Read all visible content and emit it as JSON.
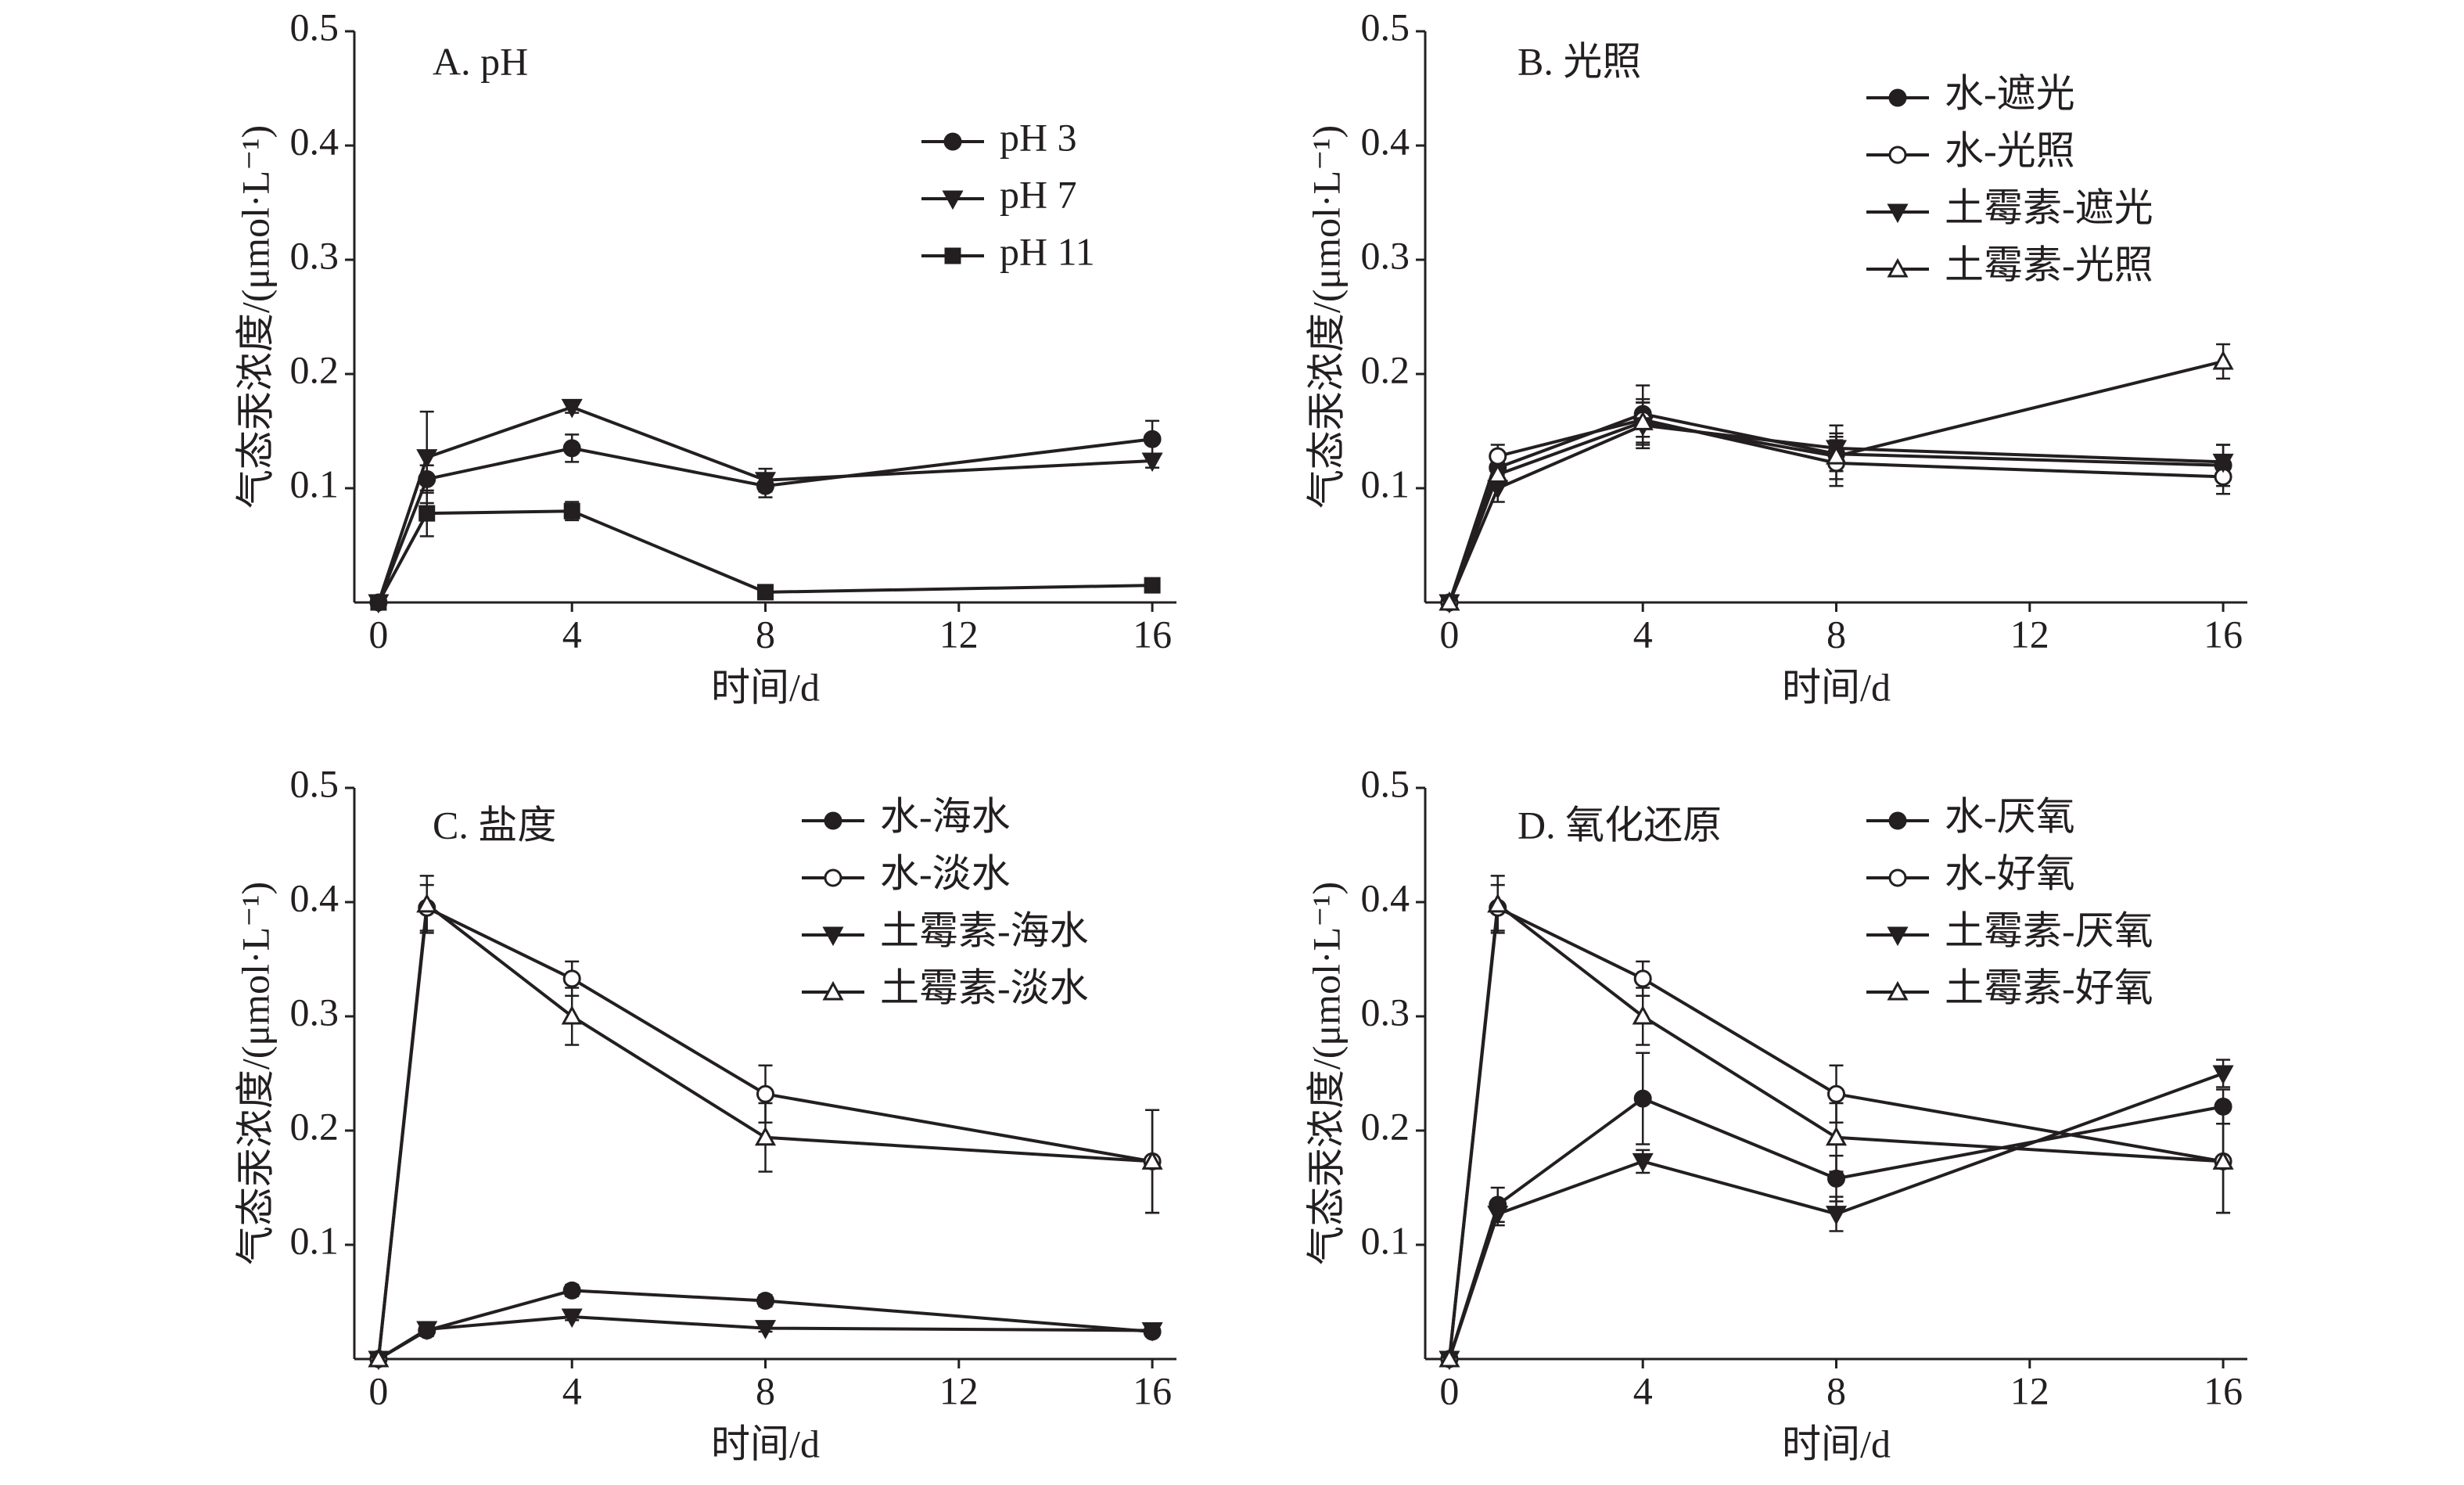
{
  "chart_data": [
    {
      "type": "line",
      "title": "A. pH",
      "x_label": "时间/d",
      "y_label": "气态汞浓度/(μmol·L⁻¹)",
      "x": [
        0,
        1,
        4,
        8,
        16
      ],
      "xlim": [
        -0.5,
        16.5
      ],
      "xticks": [
        0,
        4,
        8,
        12,
        16
      ],
      "ylim": [
        0,
        0.5
      ],
      "yticks": [
        0.1,
        0.2,
        0.3,
        0.4,
        0.5
      ],
      "series": [
        {
          "name": "pH 3",
          "color": "#231f20",
          "marker": "circle-filled",
          "values": [
            0,
            0.108,
            0.135,
            0.102,
            0.143
          ],
          "errors": [
            0,
            0.012,
            0.012,
            0.01,
            0.016
          ]
        },
        {
          "name": "pH 7",
          "color": "#231f20",
          "marker": "triangle-down-filled",
          "values": [
            0,
            0.127,
            0.171,
            0.107,
            0.124
          ],
          "errors": [
            0,
            0.04,
            0.005,
            0.01,
            0.006
          ]
        },
        {
          "name": "pH 11",
          "color": "#231f20",
          "marker": "square-filled",
          "values": [
            0,
            0.078,
            0.08,
            0.009,
            0.015
          ],
          "errors": [
            0,
            0.02,
            0.008,
            0.004,
            0.003
          ]
        }
      ]
    },
    {
      "type": "line",
      "title": "B. 光照",
      "x_label": "时间/d",
      "y_label": "气态汞浓度/(μmol·L⁻¹)",
      "x": [
        0,
        1,
        4,
        8,
        16
      ],
      "xlim": [
        -0.5,
        16.5
      ],
      "xticks": [
        0,
        4,
        8,
        12,
        16
      ],
      "ylim": [
        0,
        0.5
      ],
      "yticks": [
        0.1,
        0.2,
        0.3,
        0.4,
        0.5
      ],
      "series": [
        {
          "name": "水-遮光",
          "color": "#231f20",
          "marker": "circle-filled",
          "values": [
            0,
            0.118,
            0.165,
            0.13,
            0.12
          ],
          "errors": [
            0,
            0.01,
            0.025,
            0.015,
            0.018
          ]
        },
        {
          "name": "水-光照",
          "color": "#231f20",
          "marker": "circle-open",
          "values": [
            0,
            0.128,
            0.16,
            0.122,
            0.11
          ],
          "errors": [
            0,
            0.01,
            0.015,
            0.02,
            0.015
          ]
        },
        {
          "name": "土霉素-遮光",
          "color": "#231f20",
          "marker": "triangle-down-filled",
          "values": [
            0,
            0.1,
            0.155,
            0.135,
            0.123
          ],
          "errors": [
            0,
            0.012,
            0.02,
            0.02,
            0.015
          ]
        },
        {
          "name": "土霉素-光照",
          "color": "#231f20",
          "marker": "triangle-up-open",
          "values": [
            0,
            0.112,
            0.158,
            0.128,
            0.211
          ],
          "errors": [
            0,
            0.01,
            0.02,
            0.02,
            0.015
          ]
        }
      ]
    },
    {
      "type": "line",
      "title": "C. 盐度",
      "x_label": "时间/d",
      "y_label": "气态汞浓度/(μmol·L⁻¹)",
      "x": [
        0,
        1,
        4,
        8,
        16
      ],
      "xlim": [
        -0.5,
        16.5
      ],
      "xticks": [
        0,
        4,
        8,
        12,
        16
      ],
      "ylim": [
        0,
        0.5
      ],
      "yticks": [
        0.1,
        0.2,
        0.3,
        0.4,
        0.5
      ],
      "series": [
        {
          "name": "水-海水",
          "color": "#231f20",
          "marker": "circle-filled",
          "values": [
            0,
            0.025,
            0.06,
            0.051,
            0.024
          ],
          "errors": [
            0,
            0.005,
            0.005,
            0.005,
            0.004
          ]
        },
        {
          "name": "水-淡水",
          "color": "#231f20",
          "marker": "circle-open",
          "values": [
            0,
            0.395,
            0.333,
            0.232,
            0.173
          ],
          "errors": [
            0,
            0.02,
            0.015,
            0.025,
            0.045
          ]
        },
        {
          "name": "土霉素-海水",
          "color": "#231f20",
          "marker": "triangle-down-filled",
          "values": [
            0,
            0.026,
            0.037,
            0.027,
            0.025
          ],
          "errors": [
            0,
            0.004,
            0.003,
            0.003,
            0.003
          ]
        },
        {
          "name": "土霉素-淡水",
          "color": "#231f20",
          "marker": "triangle-up-open",
          "values": [
            0,
            0.398,
            0.3,
            0.194,
            0.173
          ],
          "errors": [
            0,
            0.025,
            0.025,
            0.03,
            0.045
          ]
        }
      ]
    },
    {
      "type": "line",
      "title": "D. 氧化还原",
      "x_label": "时间/d",
      "y_label": "气态汞浓度/(μmol·L⁻¹)",
      "x": [
        0,
        1,
        4,
        8,
        16
      ],
      "xlim": [
        -0.5,
        16.5
      ],
      "xticks": [
        0,
        4,
        8,
        12,
        16
      ],
      "ylim": [
        0,
        0.5
      ],
      "yticks": [
        0.1,
        0.2,
        0.3,
        0.4,
        0.5
      ],
      "series": [
        {
          "name": "水-厌氧",
          "color": "#231f20",
          "marker": "circle-filled",
          "values": [
            0,
            0.135,
            0.228,
            0.158,
            0.221
          ],
          "errors": [
            0,
            0.015,
            0.04,
            0.02,
            0.015
          ]
        },
        {
          "name": "水-好氧",
          "color": "#231f20",
          "marker": "circle-open",
          "values": [
            0,
            0.395,
            0.333,
            0.232,
            0.173
          ],
          "errors": [
            0,
            0.02,
            0.015,
            0.025,
            0.045
          ]
        },
        {
          "name": "土霉素-厌氧",
          "color": "#231f20",
          "marker": "triangle-down-filled",
          "values": [
            0,
            0.127,
            0.173,
            0.127,
            0.25
          ],
          "errors": [
            0,
            0.01,
            0.01,
            0.015,
            0.012
          ]
        },
        {
          "name": "土霉素-好氧",
          "color": "#231f20",
          "marker": "triangle-up-open",
          "values": [
            0,
            0.398,
            0.3,
            0.194,
            0.173
          ],
          "errors": [
            0,
            0.025,
            0.025,
            0.03,
            0.045
          ]
        }
      ]
    }
  ]
}
